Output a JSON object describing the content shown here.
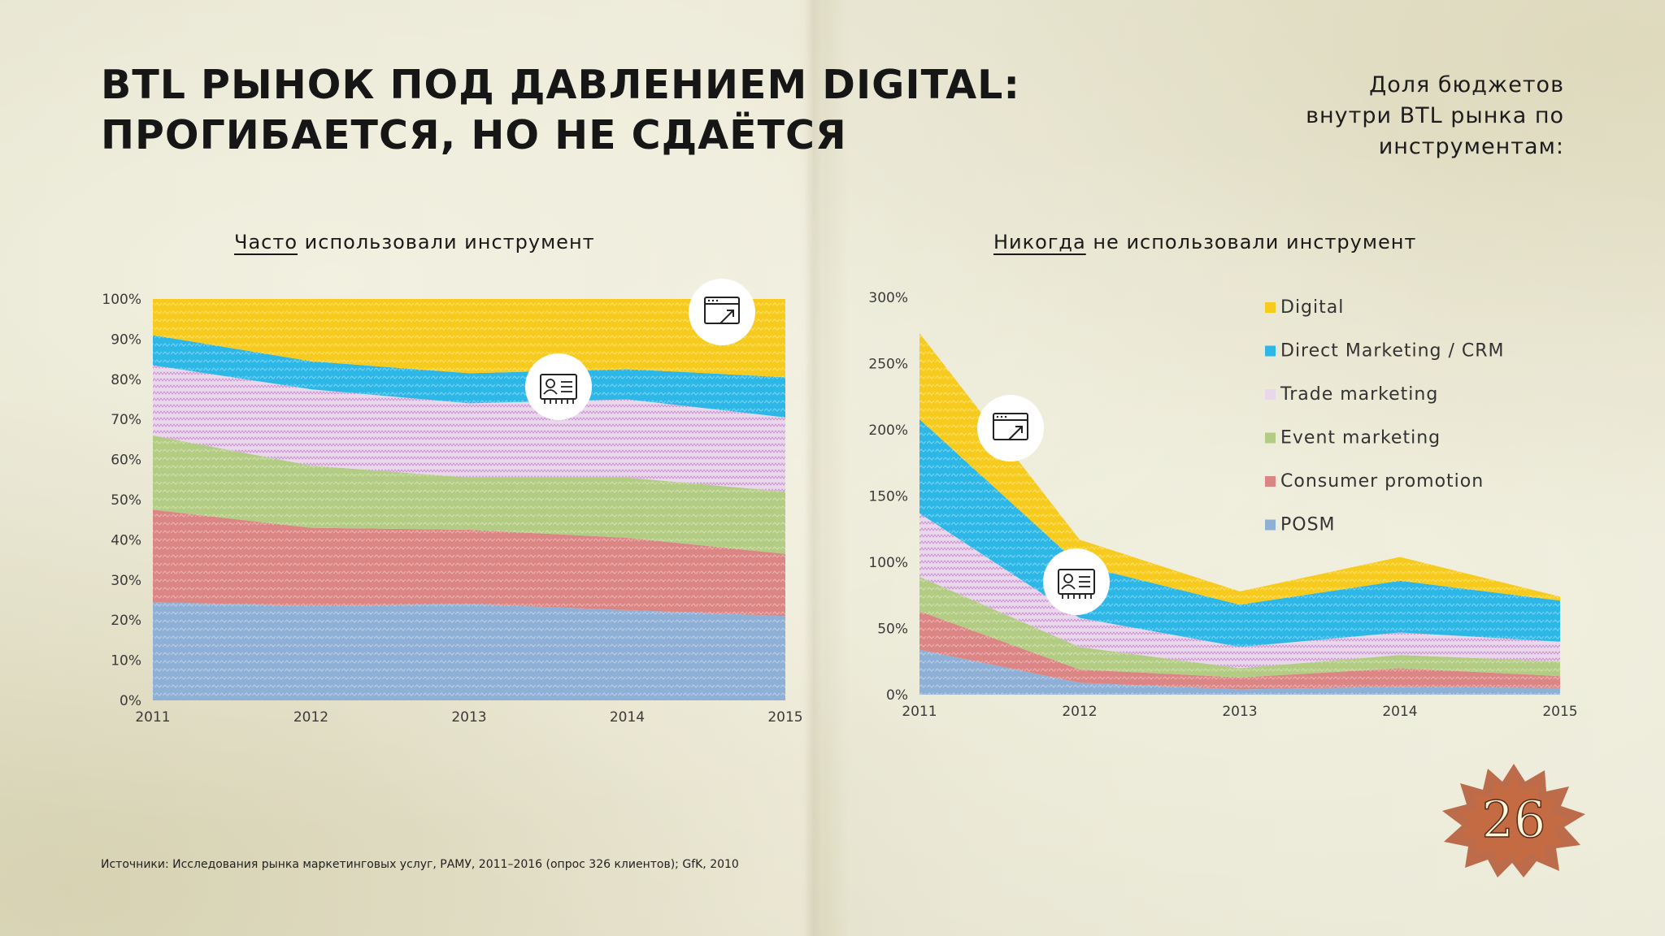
{
  "header": {
    "title_line1": "BTL РЫНОК ПОД ДАВЛЕНИЕМ DIGITAL:",
    "title_line2": "ПРОГИБАЕТСЯ, НО НЕ СДАЁТСЯ",
    "subtitle_line1": "Доля бюджетов",
    "subtitle_line2": "внутри BTL рынка по",
    "subtitle_line3": "инструментам:"
  },
  "charts": {
    "left": {
      "title_emph": "Часто",
      "title_rest": " использовали инструмент"
    },
    "right": {
      "title_emph": "Никогда",
      "title_rest": " не использовали инструмент"
    }
  },
  "colors": {
    "Digital": "#f7cb1d",
    "Direct Marketing / CRM": "#2db7e6",
    "Trade marketing": "#ead7ec",
    "Event marketing": "#b3cc83",
    "Consumer promotion": "#dc8585",
    "POSM": "#8fb0d6"
  },
  "icons": [
    "browser-cursor-icon",
    "id-card-icon"
  ],
  "footer": {
    "source": "Источники: Исследования рынка маркетинговых услуг, РАМУ, 2011–2016 (опрос 326 клиентов); GfK, 2010",
    "page_number": "26"
  },
  "chart_data": [
    {
      "type": "area",
      "stacked": true,
      "x": [
        "2011",
        "2012",
        "2013",
        "2014",
        "2015"
      ],
      "ylim": [
        0,
        100
      ],
      "yticks": [
        "0%",
        "10%",
        "20%",
        "30%",
        "40%",
        "50%",
        "60%",
        "70%",
        "80%",
        "90%",
        "100%"
      ],
      "series": [
        {
          "name": "POSM",
          "values": [
            24.5,
            23.5,
            24,
            22.5,
            21
          ]
        },
        {
          "name": "Consumer promotion",
          "values": [
            23,
            19.5,
            18.5,
            18,
            15.5
          ]
        },
        {
          "name": "Event marketing",
          "values": [
            18.5,
            15.5,
            13,
            15,
            15.5
          ]
        },
        {
          "name": "Trade marketing",
          "values": [
            17.5,
            19,
            18.5,
            19.5,
            18.5
          ]
        },
        {
          "name": "Direct Marketing / CRM",
          "values": [
            7.5,
            7,
            7.5,
            7.5,
            10
          ]
        },
        {
          "name": "Digital",
          "values": [
            9,
            15.5,
            18.5,
            17.5,
            19.5
          ]
        }
      ]
    },
    {
      "type": "area",
      "stacked": true,
      "x": [
        "2011",
        "2012",
        "2013",
        "2014",
        "2015"
      ],
      "ylim": [
        0,
        300
      ],
      "yticks": [
        "0%",
        "50%",
        "100%",
        "150%",
        "200%",
        "250%",
        "300%"
      ],
      "legend": [
        "Digital",
        "Direct Marketing / CRM",
        "Trade marketing",
        "Event marketing",
        "Consumer promotion",
        "POSM"
      ],
      "series": [
        {
          "name": "POSM",
          "values": [
            34,
            9,
            4,
            6,
            5
          ]
        },
        {
          "name": "Consumer promotion",
          "values": [
            29,
            10,
            9,
            14,
            9
          ]
        },
        {
          "name": "Event marketing",
          "values": [
            26,
            17,
            7,
            10,
            11
          ]
        },
        {
          "name": "Trade marketing",
          "values": [
            48,
            22,
            16,
            17,
            15
          ]
        },
        {
          "name": "Direct Marketing / CRM",
          "values": [
            71,
            40,
            32,
            39,
            31
          ]
        },
        {
          "name": "Digital",
          "values": [
            65,
            19,
            10,
            18,
            3
          ]
        }
      ]
    }
  ]
}
